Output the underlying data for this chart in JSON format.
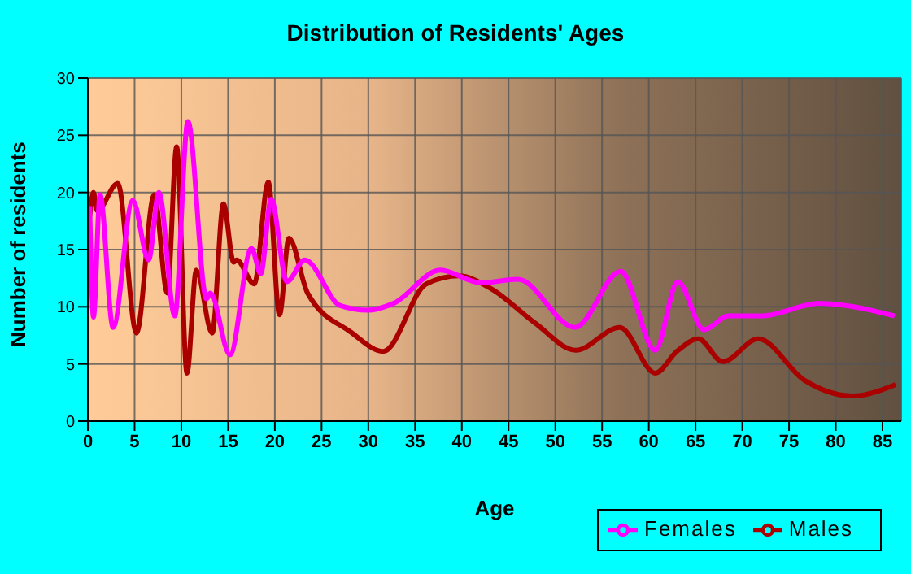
{
  "chart_data": {
    "type": "line",
    "title": "Distribution of Residents' Ages",
    "xlabel": "Age",
    "ylabel": "Number of residents",
    "xlim": [
      0,
      87
    ],
    "ylim": [
      0,
      30
    ],
    "xticks": [
      0,
      5,
      10,
      15,
      20,
      25,
      30,
      35,
      40,
      45,
      50,
      55,
      60,
      65,
      70,
      75,
      80,
      85
    ],
    "yticks": [
      0,
      5,
      10,
      15,
      20,
      25,
      30
    ],
    "grid": true,
    "legend": "bottom right",
    "line_style": "solid",
    "series": [
      {
        "name": "Males",
        "color": "#aa0000",
        "x": [
          0.2,
          0.6,
          1,
          3.2,
          5.2,
          7.1,
          8.5,
          9.5,
          10.6,
          11.6,
          13.3,
          14.5,
          15.6,
          15.9,
          17.8,
          19.3,
          20.5,
          21.5,
          23.5,
          28.1,
          31.6,
          36.2,
          39.7,
          43.1,
          47.8,
          52.2,
          56.9,
          60.7,
          63,
          65.3,
          67.9,
          71.7,
          76.6,
          81.8,
          86.4
        ],
        "values": [
          17.9,
          20,
          18.4,
          20.8,
          7.7,
          19.8,
          11.2,
          24,
          4.2,
          13.2,
          7.7,
          19,
          13.9,
          14.1,
          12,
          20.9,
          9.3,
          16,
          11.2,
          7.8,
          6.1,
          12,
          12.7,
          11.6,
          8.6,
          6.2,
          8.2,
          4.2,
          6.1,
          7.2,
          5.2,
          7.2,
          3.6,
          2.2,
          3.2
        ]
      },
      {
        "name": "Females",
        "color": "#ff00ff",
        "x": [
          0.2,
          0.6,
          1.3,
          2.7,
          4.8,
          6.5,
          7.6,
          9.3,
          10.7,
          12.7,
          13.1,
          15.2,
          17.5,
          18.5,
          19.6,
          21.3,
          23.2,
          27,
          29.9,
          32.7,
          37.7,
          42,
          46,
          52.1,
          57,
          60.7,
          63.1,
          65.9,
          68.5,
          72,
          78.3,
          81.2,
          86.3
        ],
        "values": [
          18.8,
          9.1,
          19.8,
          8.2,
          19.3,
          14.1,
          20,
          9.2,
          26.2,
          10.7,
          11.2,
          5.8,
          15.1,
          12.9,
          19.4,
          12.2,
          14.1,
          10.1,
          9.7,
          10.3,
          13.2,
          12.1,
          12.4,
          8.2,
          13.1,
          6.2,
          12.2,
          8,
          9.2,
          9.2,
          10.3,
          10.1,
          9.2
        ]
      }
    ]
  }
}
